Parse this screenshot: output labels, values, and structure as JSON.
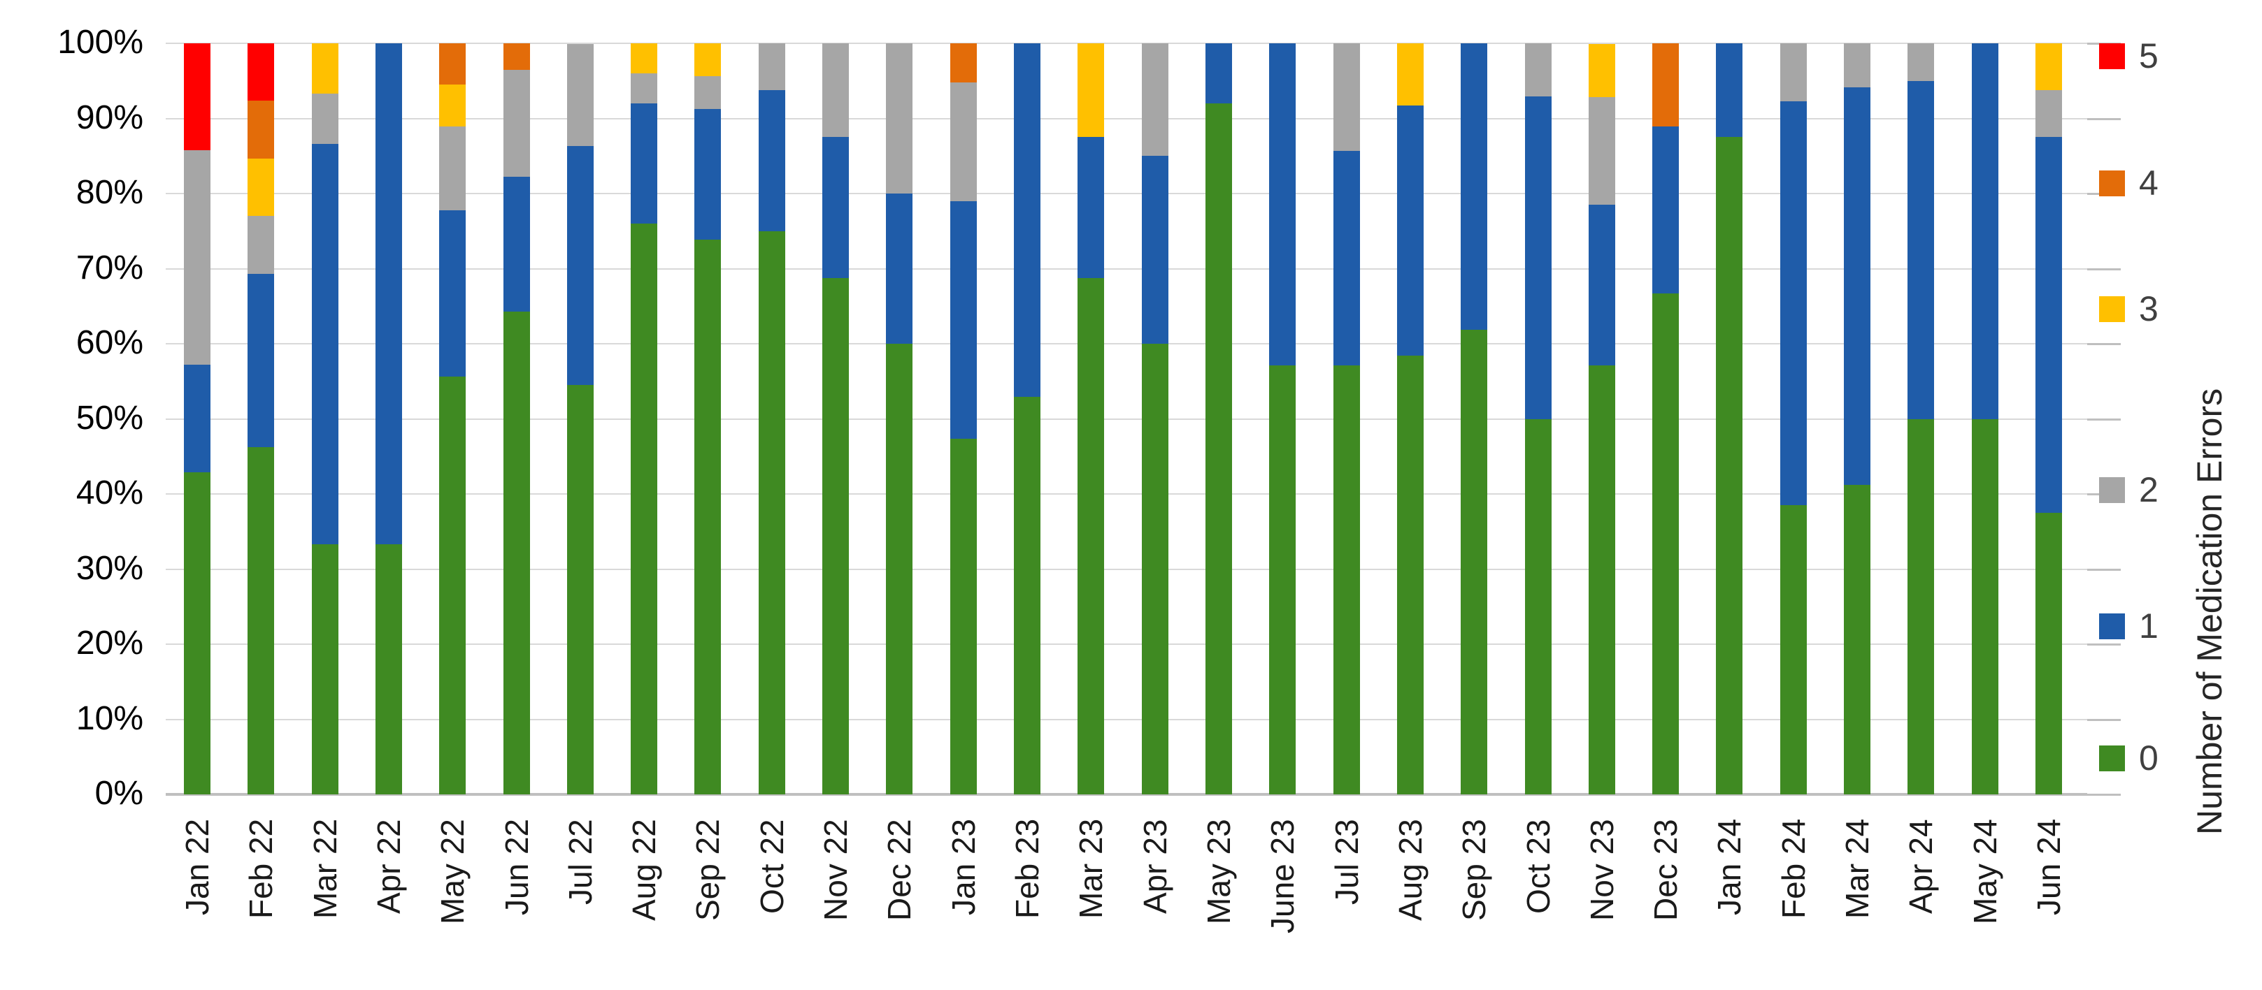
{
  "chart_data": {
    "type": "bar",
    "subtype": "percent-stacked-vertical",
    "title": "",
    "right_axis_title": "Number of Medication Errors",
    "categories": [
      "Jan 22",
      "Feb 22",
      "Mar 22",
      "Apr 22",
      "May 22",
      "Jun 22",
      "Jul 22",
      "Aug 22",
      "Sep 22",
      "Oct 22",
      "Nov 22",
      "Dec 22",
      "Jan 23",
      "Feb 23",
      "Mar 23",
      "Apr 23",
      "May 23",
      "June 23",
      "Jul 23",
      "Aug 23",
      "Sep 23",
      "Oct 23",
      "Nov 23",
      "Dec 23",
      "Jan 24",
      "Feb 24",
      "Mar 24",
      "Apr 24",
      "May 24",
      "Jun 24"
    ],
    "series": [
      {
        "name": "0",
        "color": "#3F8A22",
        "values": [
          42.9,
          46.2,
          33.3,
          33.3,
          55.6,
          64.3,
          54.5,
          76,
          73.9,
          75,
          68.75,
          60,
          47.4,
          52.9,
          68.75,
          60,
          92,
          57.1,
          57.1,
          58.4,
          61.9,
          50,
          57.1,
          66.7,
          87.5,
          38.5,
          41.2,
          50,
          50,
          37.5
        ]
      },
      {
        "name": "1",
        "color": "#1F5CA9",
        "values": [
          14.3,
          23.1,
          53.3,
          66.7,
          22.2,
          17.9,
          31.8,
          16,
          17.4,
          18.75,
          18.75,
          20,
          31.6,
          47.1,
          18.75,
          25,
          8,
          42.9,
          28.6,
          33.3,
          38.1,
          42.9,
          21.4,
          22.2,
          12.5,
          53.8,
          52.9,
          45,
          50,
          50
        ]
      },
      {
        "name": "2",
        "color": "#A6A6A6",
        "values": [
          28.6,
          7.7,
          6.7,
          0,
          11.1,
          14.3,
          13.6,
          4,
          4.35,
          6.25,
          12.5,
          20,
          15.8,
          0,
          0,
          15,
          0,
          0,
          14.3,
          0,
          0,
          7.1,
          14.3,
          0,
          0,
          7.7,
          5.9,
          5,
          0,
          6.25
        ]
      },
      {
        "name": "3",
        "color": "#FFC000",
        "values": [
          0,
          7.7,
          6.7,
          0,
          5.6,
          0,
          0,
          4,
          4.35,
          0,
          0,
          0,
          0,
          0,
          12.5,
          0,
          0,
          0,
          0,
          8.3,
          0,
          0,
          7.1,
          0,
          0,
          0,
          0,
          0,
          0,
          6.25
        ]
      },
      {
        "name": "4",
        "color": "#E36C09",
        "values": [
          0,
          7.7,
          0,
          0,
          5.6,
          3.6,
          0,
          0,
          0,
          0,
          0,
          0,
          5.3,
          0,
          0,
          0,
          0,
          0,
          0,
          0,
          0,
          0,
          0,
          11.1,
          0,
          0,
          0,
          0,
          0,
          0
        ]
      },
      {
        "name": "5",
        "color": "#FF0000",
        "values": [
          14.3,
          7.7,
          0,
          0,
          0,
          0,
          0,
          0,
          0,
          0,
          0,
          0,
          0,
          0,
          0,
          0,
          0,
          0,
          0,
          0,
          0,
          0,
          0,
          0,
          0,
          0,
          0,
          0,
          0,
          0
        ]
      }
    ],
    "y_axis": {
      "min": 0,
      "max": 100,
      "tick_labels_top_to_bottom": [
        "100%",
        "90%",
        "80%",
        "70%",
        "60%",
        "50%",
        "40%",
        "30%",
        "20%",
        "10%",
        "0%"
      ],
      "grid": true
    },
    "legend": {
      "position": "right",
      "items_top_to_bottom": [
        "5",
        "4",
        "3",
        "2",
        "1",
        "0"
      ]
    }
  },
  "colors": {
    "background": "#FFFFFF",
    "gridline": "#D9D9D9",
    "baseline": "#BFBFBF",
    "tick": "#BFBFBF",
    "y_label_text": "#000000",
    "x_label_text": "#1A1A1A",
    "legend_text": "#404040",
    "axis_title_text": "#262626"
  }
}
